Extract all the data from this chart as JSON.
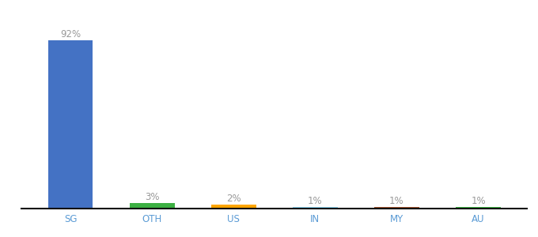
{
  "categories": [
    "SG",
    "OTH",
    "US",
    "IN",
    "MY",
    "AU"
  ],
  "values": [
    92,
    3,
    2,
    1,
    1,
    1
  ],
  "labels": [
    "92%",
    "3%",
    "2%",
    "1%",
    "1%",
    "1%"
  ],
  "bar_colors": [
    "#4472C4",
    "#3CB043",
    "#FFA500",
    "#87CEEB",
    "#A0522D",
    "#3CB043"
  ],
  "background_color": "#ffffff",
  "label_color": "#999999",
  "xlabel_color": "#5B9BD5",
  "ylim": [
    0,
    105
  ],
  "bar_width": 0.55,
  "figsize": [
    6.8,
    3.0
  ],
  "dpi": 100
}
